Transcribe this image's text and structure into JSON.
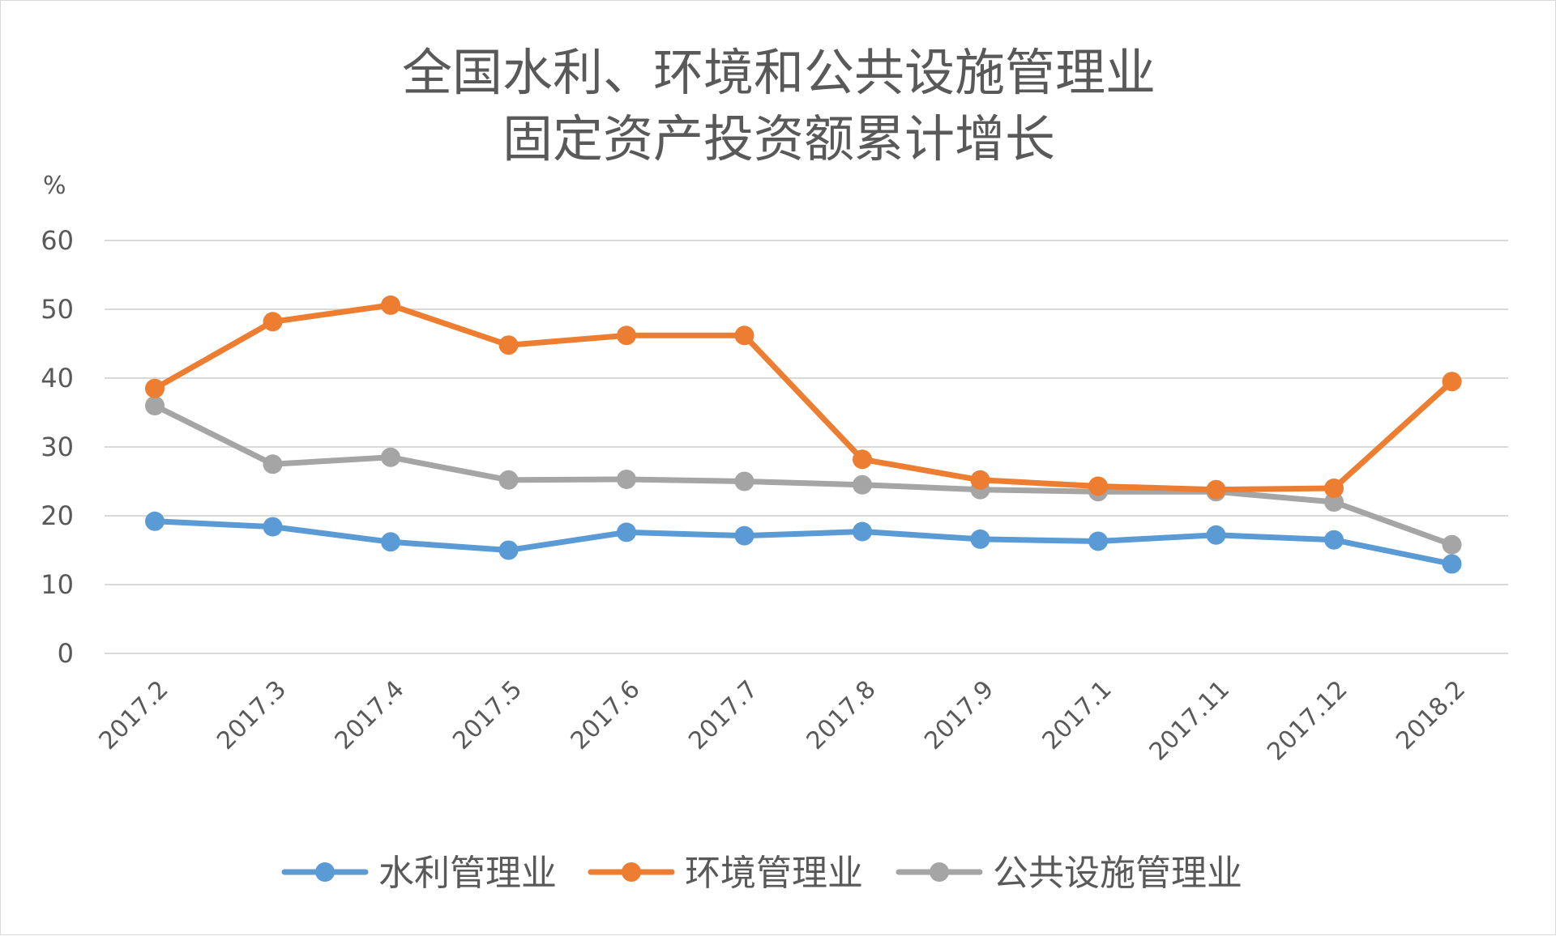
{
  "chart_data": {
    "type": "line",
    "title_lines": [
      "全国水利、环境和公共设施管理业",
      "固定资产投资额累计增长"
    ],
    "y_unit": "%",
    "ylim": [
      0,
      60
    ],
    "yticks": [
      "0",
      "10",
      "20",
      "30",
      "40",
      "50",
      "60"
    ],
    "grid": true,
    "legend_position": "bottom",
    "categories": [
      "2017.2",
      "2017.3",
      "2017.4",
      "2017.5",
      "2017.6",
      "2017.7",
      "2017.8",
      "2017.9",
      "2017.1",
      "2017.11",
      "2017.12",
      "2018.2"
    ],
    "series": [
      {
        "name": "水利管理业",
        "color": "#5B9BD5",
        "values": [
          19.2,
          18.4,
          16.2,
          15.0,
          17.6,
          17.1,
          17.7,
          16.6,
          16.3,
          17.2,
          16.5,
          13.0
        ]
      },
      {
        "name": "环境管理业",
        "color": "#ED7D31",
        "values": [
          38.5,
          48.2,
          50.6,
          44.8,
          46.2,
          46.2,
          28.2,
          25.2,
          24.3,
          23.8,
          24.0,
          39.5
        ]
      },
      {
        "name": "公共设施管理业",
        "color": "#A5A5A5",
        "values": [
          36.0,
          27.5,
          28.5,
          25.2,
          25.3,
          25.0,
          24.5,
          23.8,
          23.5,
          23.5,
          22.0,
          15.8
        ]
      }
    ]
  }
}
